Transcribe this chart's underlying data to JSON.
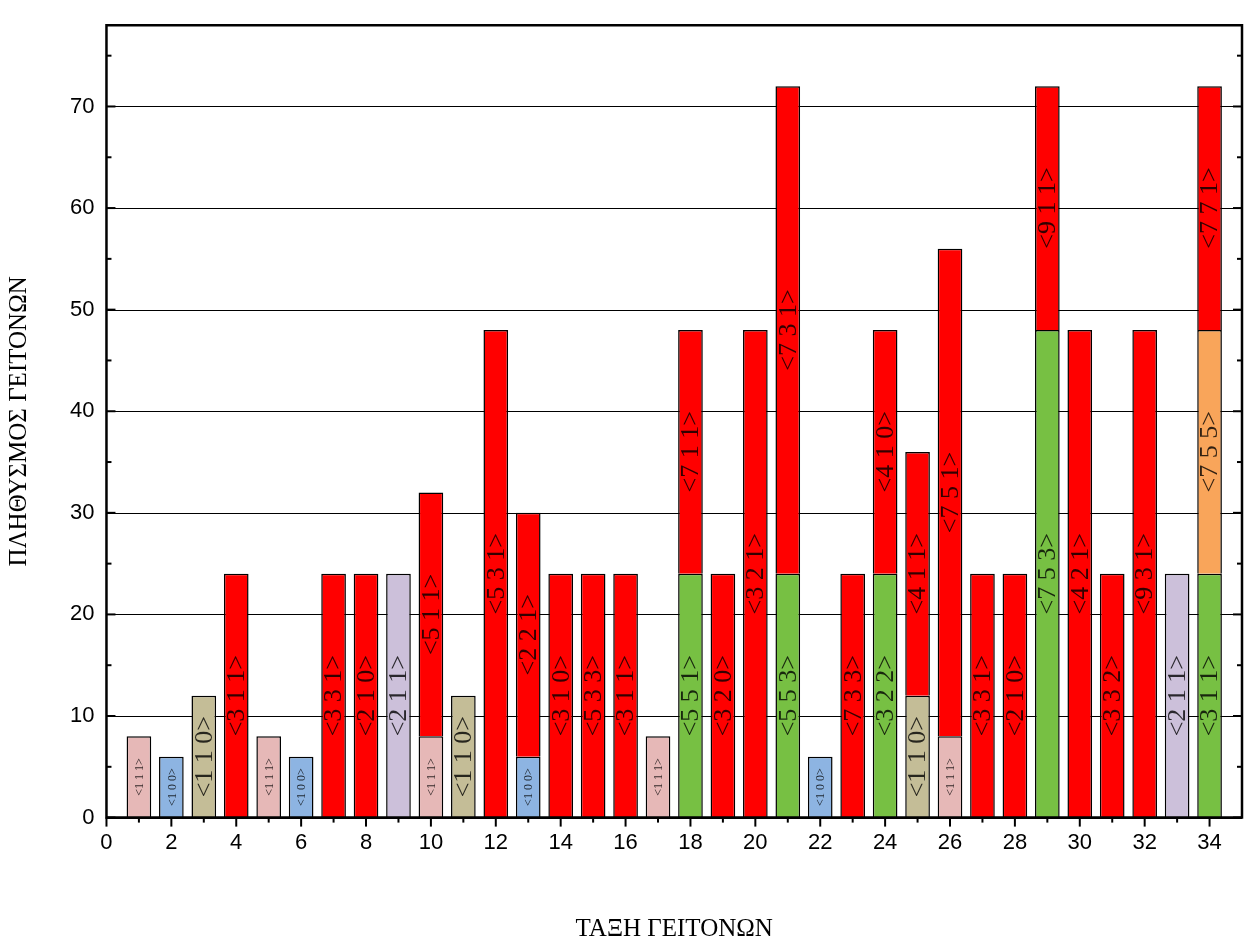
{
  "chart_data": {
    "type": "bar",
    "stacked": true,
    "xlabel": "ΤΑΞΗ ΓΕΙΤΟΝΩΝ",
    "ylabel": "ΠΛΗΘΥΣΜΟΣ ΓΕΙΤΟΝΩΝ",
    "x": [
      1,
      2,
      3,
      4,
      5,
      6,
      7,
      8,
      9,
      10,
      11,
      12,
      13,
      14,
      15,
      16,
      17,
      18,
      19,
      20,
      21,
      22,
      23,
      24,
      25,
      26,
      27,
      28,
      29,
      30,
      31,
      32,
      33,
      34
    ],
    "xlim": [
      0,
      35
    ],
    "xticks": [
      0,
      {
        "value": 1,
        "label": null
      },
      2,
      {
        "value": 3,
        "label": null
      },
      4,
      {
        "value": 5,
        "label": null
      },
      6,
      {
        "value": 7,
        "label": null
      },
      8,
      {
        "value": 9,
        "label": null
      },
      10,
      {
        "value": 11,
        "label": null
      },
      12,
      {
        "value": 13,
        "label": null
      },
      14,
      {
        "value": 15,
        "label": null
      },
      16,
      {
        "value": 17,
        "label": null
      },
      18,
      {
        "value": 19,
        "label": null
      },
      20,
      {
        "value": 21,
        "label": null
      },
      22,
      {
        "value": 23,
        "label": null
      },
      24,
      {
        "value": 25,
        "label": null
      },
      26,
      {
        "value": 27,
        "label": null
      },
      28,
      {
        "value": 29,
        "label": null
      },
      30,
      {
        "value": 31,
        "label": null
      },
      32,
      {
        "value": 33,
        "label": null
      },
      34
    ],
    "ylim": [
      0,
      78
    ],
    "yticks": [
      0,
      {
        "value": 5,
        "label": null
      },
      10,
      {
        "value": 15,
        "label": null
      },
      20,
      {
        "value": 25,
        "label": null
      },
      30,
      {
        "value": 35,
        "label": null
      },
      40,
      {
        "value": 45,
        "label": null
      },
      50,
      {
        "value": 55,
        "label": null
      },
      60,
      {
        "value": 65,
        "label": null
      },
      70,
      {
        "value": 75,
        "label": null
      }
    ],
    "grid": "y",
    "legend": false,
    "series": [
      {
        "values": [
          8,
          6,
          12,
          24,
          8,
          6,
          24,
          24,
          24,
          8,
          12,
          48,
          6,
          24,
          24,
          24,
          8,
          24,
          24,
          48,
          24,
          6,
          24,
          24,
          12,
          8,
          24,
          24,
          48,
          48,
          24,
          48,
          24,
          24
        ],
        "colors": [
          "#e6b8b7",
          "#8db4e2",
          "#c4bd97",
          "#ff0000",
          "#e6b8b7",
          "#8db4e2",
          "#ff0000",
          "#ff0000",
          "#ccc0da",
          "#e6b8b7",
          "#c4bd97",
          "#ff0000",
          "#8db4e2",
          "#ff0000",
          "#ff0000",
          "#ff0000",
          "#e6b8b7",
          "#77c043",
          "#ff0000",
          "#ff0000",
          "#77c043",
          "#8db4e2",
          "#ff0000",
          "#77c043",
          "#c4bd97",
          "#e6b8b7",
          "#ff0000",
          "#ff0000",
          "#77c043",
          "#ff0000",
          "#ff0000",
          "#ff0000",
          "#ccc0da",
          "#77c043"
        ],
        "value_labels": [
          "<1 1 1>",
          "<1 0 0>",
          "<1 1 0>",
          "<3 1 1>",
          "<1 1 1>",
          "<1 0 0>",
          "<3 3 1>",
          "<2 1 0>",
          "<2 1 1>",
          "<1 1 1>",
          "<1 1 0>",
          "<5 3 1>",
          "<1 0 0>",
          "<3 1 0>",
          "<5 3 3>",
          "<3 1 1>",
          "<1 1 1>",
          "<5 5 1>",
          "<3 2 0>",
          "<3 2 1>",
          "<5 5 3>",
          "<1 0 0>",
          "<7 3 3>",
          "<3 2 2>",
          "<1 1 0>",
          "<1 1 1>",
          "<3 3 1>",
          "<2 1 0>",
          "<7 5 3>",
          "<4 2 1>",
          "<3 3 2>",
          "<9 3 1>",
          "<2 1 1>",
          "<3 1 1>"
        ]
      },
      {
        "values": [
          null,
          null,
          null,
          null,
          null,
          null,
          null,
          null,
          null,
          24,
          null,
          null,
          24,
          null,
          null,
          null,
          null,
          24,
          null,
          null,
          48,
          null,
          null,
          24,
          24,
          48,
          null,
          null,
          24,
          null,
          null,
          null,
          null,
          24
        ],
        "colors": [
          null,
          null,
          null,
          null,
          null,
          null,
          null,
          null,
          null,
          "#ff0000",
          null,
          null,
          "#ff0000",
          null,
          null,
          null,
          null,
          "#ff0000",
          null,
          null,
          "#ff0000",
          null,
          null,
          "#ff0000",
          "#ff0000",
          "#ff0000",
          null,
          null,
          "#ff0000",
          null,
          null,
          null,
          null,
          "#f9a55a"
        ],
        "value_labels": [
          null,
          null,
          null,
          null,
          null,
          null,
          null,
          null,
          null,
          "<5 1 1>",
          null,
          null,
          "<2 2 1>",
          null,
          null,
          null,
          null,
          "<7 1 1>",
          null,
          null,
          "<7 3 1>",
          null,
          null,
          "<4 1 0>",
          "<4 1 1>",
          "<7 5 1>",
          null,
          null,
          "<9 1 1>",
          null,
          null,
          null,
          null,
          "<7 5 5>"
        ]
      },
      {
        "values": [
          null,
          null,
          null,
          null,
          null,
          null,
          null,
          null,
          null,
          null,
          null,
          null,
          null,
          null,
          null,
          null,
          null,
          null,
          null,
          null,
          null,
          null,
          null,
          null,
          null,
          null,
          null,
          null,
          null,
          null,
          null,
          null,
          null,
          24
        ],
        "colors": [
          null,
          null,
          null,
          null,
          null,
          null,
          null,
          null,
          null,
          null,
          null,
          null,
          null,
          null,
          null,
          null,
          null,
          null,
          null,
          null,
          null,
          null,
          null,
          null,
          null,
          null,
          null,
          null,
          null,
          null,
          null,
          null,
          null,
          "#ff0000"
        ],
        "value_labels": [
          null,
          null,
          null,
          null,
          null,
          null,
          null,
          null,
          null,
          null,
          null,
          null,
          null,
          null,
          null,
          null,
          null,
          null,
          null,
          null,
          null,
          null,
          null,
          null,
          null,
          null,
          null,
          null,
          null,
          null,
          null,
          null,
          null,
          "<7 7 1>"
        ]
      }
    ]
  }
}
